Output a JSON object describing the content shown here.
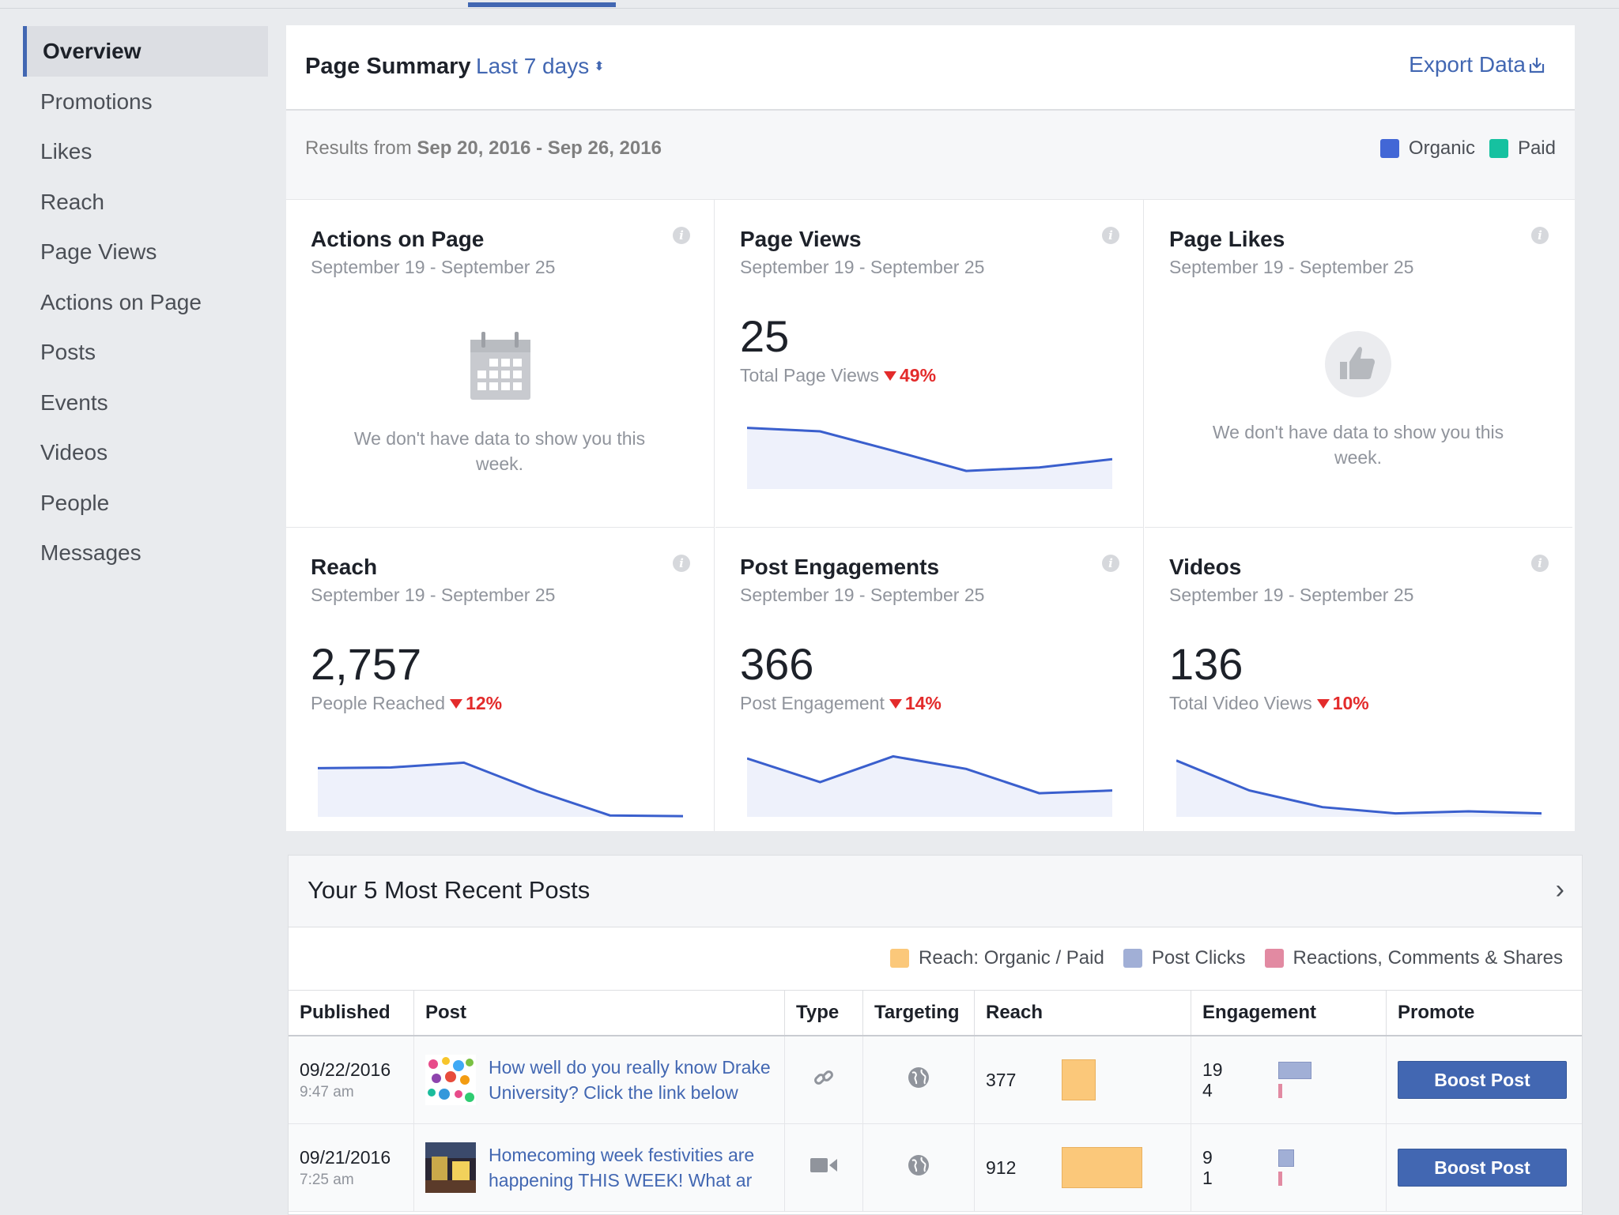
{
  "sidebar": {
    "items": [
      {
        "label": "Overview",
        "active": true
      },
      {
        "label": "Promotions"
      },
      {
        "label": "Likes"
      },
      {
        "label": "Reach"
      },
      {
        "label": "Page Views"
      },
      {
        "label": "Actions on Page"
      },
      {
        "label": "Posts"
      },
      {
        "label": "Events"
      },
      {
        "label": "Videos"
      },
      {
        "label": "People"
      },
      {
        "label": "Messages"
      }
    ]
  },
  "summary": {
    "title": "Page Summary",
    "range_label": "Last 7 days",
    "export_label": "Export Data",
    "results_prefix": "Results from",
    "results_range": "Sep 20, 2016 - Sep 26, 2016",
    "legend": [
      {
        "label": "Organic",
        "color": "#4267d6"
      },
      {
        "label": "Paid",
        "color": "#16c1a0"
      }
    ],
    "cards": [
      {
        "title": "Actions on Page",
        "date": "September 19 - September 25",
        "empty_text": "We don't have data to show you this week.",
        "icon": "calendar-icon"
      },
      {
        "title": "Page Views",
        "date": "September 19 - September 25",
        "value": "25",
        "metric": "Total Page Views",
        "delta": "49%"
      },
      {
        "title": "Page Likes",
        "date": "September 19 - September 25",
        "empty_text": "We don't have data to show you this week.",
        "icon": "thumbs-up-icon"
      },
      {
        "title": "Reach",
        "date": "September 19 - September 25",
        "value": "2,757",
        "metric": "People Reached",
        "delta": "12%"
      },
      {
        "title": "Post Engagements",
        "date": "September 19 - September 25",
        "value": "366",
        "metric": "Post Engagement",
        "delta": "14%"
      },
      {
        "title": "Videos",
        "date": "September 19 - September 25",
        "value": "136",
        "metric": "Total Video Views",
        "delta": "10%"
      }
    ]
  },
  "chart_data": [
    {
      "type": "area",
      "series": [
        {
          "values": [
            88,
            83,
            55,
            26,
            31,
            43
          ]
        }
      ],
      "ylim": [
        0,
        100
      ]
    },
    {
      "type": "area",
      "series": [
        {
          "values": [
            70,
            71,
            78,
            37,
            2,
            1
          ]
        }
      ],
      "ylim": [
        0,
        100
      ]
    },
    {
      "type": "area",
      "series": [
        {
          "values": [
            84,
            50,
            87,
            69,
            34,
            38
          ]
        }
      ],
      "ylim": [
        0,
        100
      ]
    },
    {
      "type": "area",
      "series": [
        {
          "values": [
            81,
            38,
            14,
            5,
            8,
            5
          ]
        }
      ],
      "ylim": [
        0,
        100
      ]
    }
  ],
  "posts": {
    "title": "Your 5 Most Recent Posts",
    "legend": [
      {
        "label": "Reach: Organic / Paid",
        "color": "#fbc87a"
      },
      {
        "label": "Post Clicks",
        "color": "#a1afd6"
      },
      {
        "label": "Reactions, Comments & Shares",
        "color": "#e28aa2"
      }
    ],
    "columns": [
      "Published",
      "Post",
      "Type",
      "Targeting",
      "Reach",
      "Engagement",
      "Promote"
    ],
    "rows": [
      {
        "date": "09/22/2016",
        "time": "9:47 am",
        "text": "How well do you really know Drake University? Click the link below",
        "type_icon": "link-icon",
        "targeting_icon": "globe-icon",
        "reach": "377",
        "reach_fraction": 0.41,
        "clicks": "19",
        "reactions": "4",
        "clicks_fraction": 1.0,
        "boost": "Boost Post"
      },
      {
        "date": "09/21/2016",
        "time": "7:25 am",
        "text": "Homecoming week festivities are happening THIS WEEK! What ar",
        "type_icon": "video-icon",
        "targeting_icon": "globe-icon",
        "reach": "912",
        "reach_fraction": 1.0,
        "clicks": "9",
        "reactions": "1",
        "clicks_fraction": 0.45,
        "boost": "Boost Post"
      }
    ]
  }
}
